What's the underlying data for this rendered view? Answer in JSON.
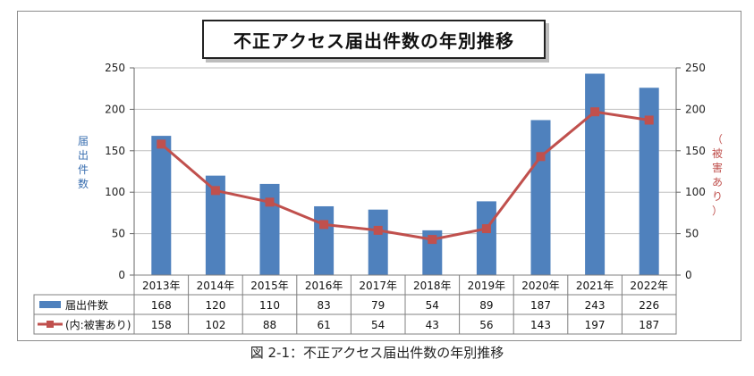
{
  "title": "不正アクセス届出件数の年別推移",
  "caption": "図 2-1：不正アクセス届出件数の年別推移",
  "chart_data": {
    "type": "bar",
    "title": "不正アクセス届出件数の年別推移",
    "categories": [
      "2013年",
      "2014年",
      "2015年",
      "2016年",
      "2017年",
      "2018年",
      "2019年",
      "2020年",
      "2021年",
      "2022年"
    ],
    "series": [
      {
        "name": "届出件数",
        "type": "bar",
        "axis": "left",
        "color": "#4f81bd",
        "values": [
          168,
          120,
          110,
          83,
          79,
          54,
          89,
          187,
          243,
          226
        ]
      },
      {
        "name": "(内:被害あり)",
        "type": "line",
        "axis": "right",
        "color": "#c0504d",
        "values": [
          158,
          102,
          88,
          61,
          54,
          43,
          56,
          143,
          197,
          187
        ]
      }
    ],
    "ylabel": "届出件数",
    "y2label": "（被害あり）",
    "ylim": [
      0,
      250
    ],
    "y2lim": [
      0,
      250
    ],
    "yticks": [
      "0",
      "50",
      "100",
      "150",
      "200",
      "250"
    ],
    "grid": true,
    "legend": "data-table"
  }
}
